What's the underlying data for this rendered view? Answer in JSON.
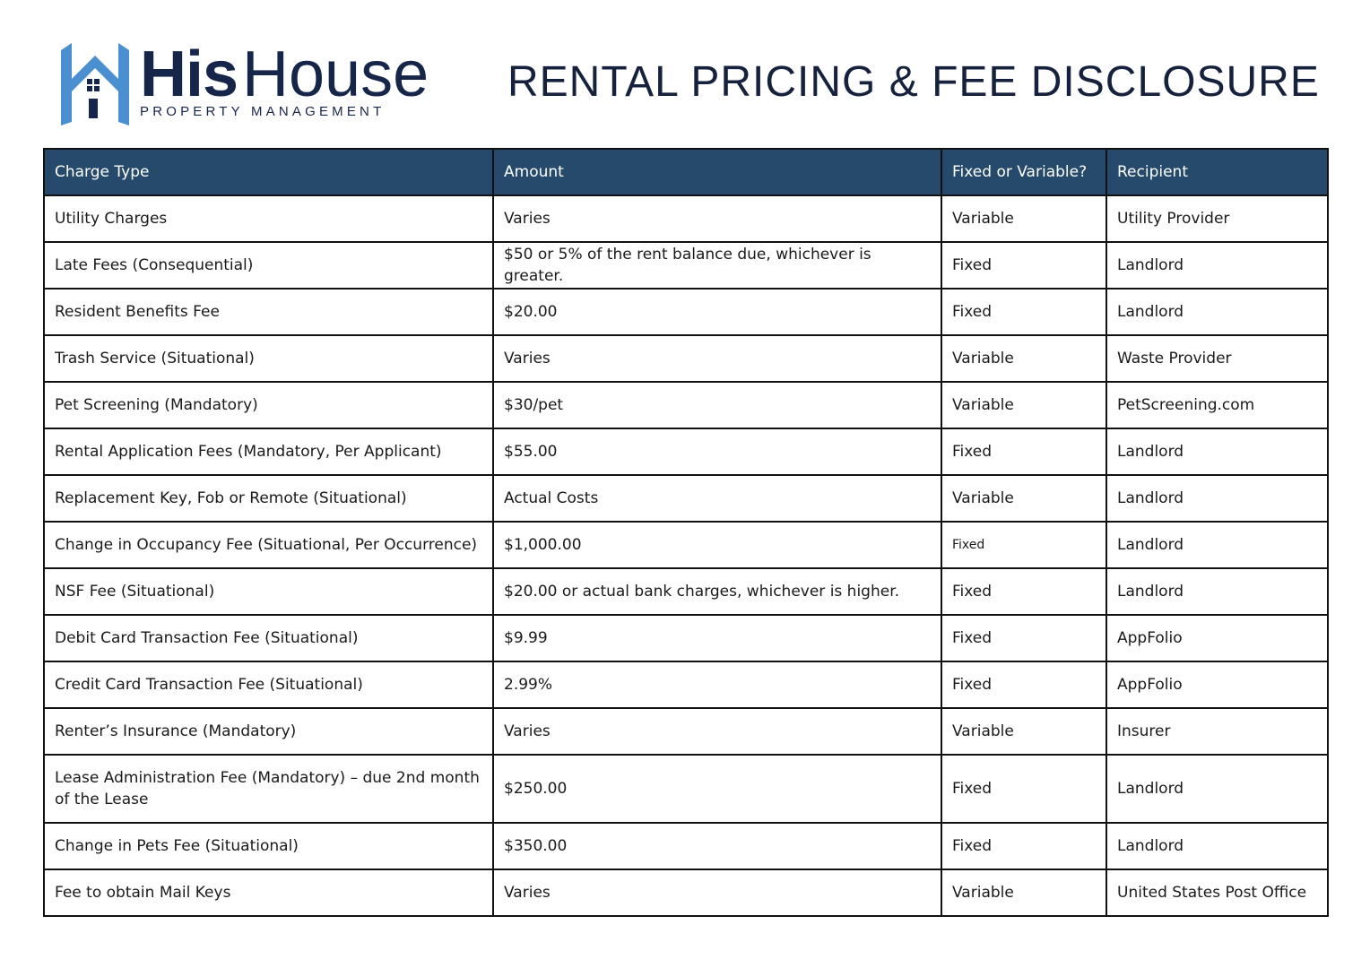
{
  "logo": {
    "name_bold": "His",
    "name_light": "House",
    "subtitle": "PROPERTY MANAGEMENT",
    "colors": {
      "icon": "#4a90d0",
      "text": "#16254a"
    }
  },
  "title": "RENTAL PRICING & FEE DISCLOSURE",
  "table": {
    "header_color": "#264a6b",
    "columns": [
      "Charge Type",
      "Amount",
      "Fixed or Variable?",
      "Recipient"
    ],
    "rows": [
      [
        "Utility Charges",
        "Varies",
        "Variable",
        "Utility Provider"
      ],
      [
        "Late Fees (Consequential)",
        "$50 or 5% of the rent balance due, whichever is greater.",
        "Fixed",
        "Landlord"
      ],
      [
        "Resident Benefits Fee",
        "$20.00",
        "Fixed",
        "Landlord"
      ],
      [
        "Trash Service (Situational)",
        "Varies",
        "Variable",
        "Waste Provider"
      ],
      [
        "Pet Screening (Mandatory)",
        "$30/pet",
        "Variable",
        "PetScreening.com"
      ],
      [
        "Rental Application Fees (Mandatory, Per Applicant)",
        "$55.00",
        "Fixed",
        "Landlord"
      ],
      [
        "Replacement Key, Fob or Remote (Situational)",
        "Actual Costs",
        "Variable",
        "Landlord"
      ],
      [
        "Change in Occupancy Fee (Situational, Per Occurrence)",
        "$1,000.00",
        "Fixed",
        "Landlord"
      ],
      [
        "NSF Fee (Situational)",
        "$20.00 or actual bank charges, whichever is higher.",
        "Fixed",
        "Landlord"
      ],
      [
        "Debit Card Transaction Fee (Situational)",
        "$9.99",
        "Fixed",
        "AppFolio"
      ],
      [
        "Credit Card Transaction Fee (Situational)",
        "2.99%",
        "Fixed",
        "AppFolio"
      ],
      [
        "Renter’s Insurance (Mandatory)",
        "Varies",
        "Variable",
        "Insurer"
      ],
      [
        "Lease Administration Fee (Mandatory) – due 2nd month of the Lease",
        "$250.00",
        "Fixed",
        "Landlord"
      ],
      [
        "Change in Pets Fee (Situational)",
        "$350.00",
        "Fixed",
        "Landlord"
      ],
      [
        "Fee to obtain Mail Keys",
        "Varies",
        "Variable",
        "United States Post Office"
      ]
    ]
  }
}
